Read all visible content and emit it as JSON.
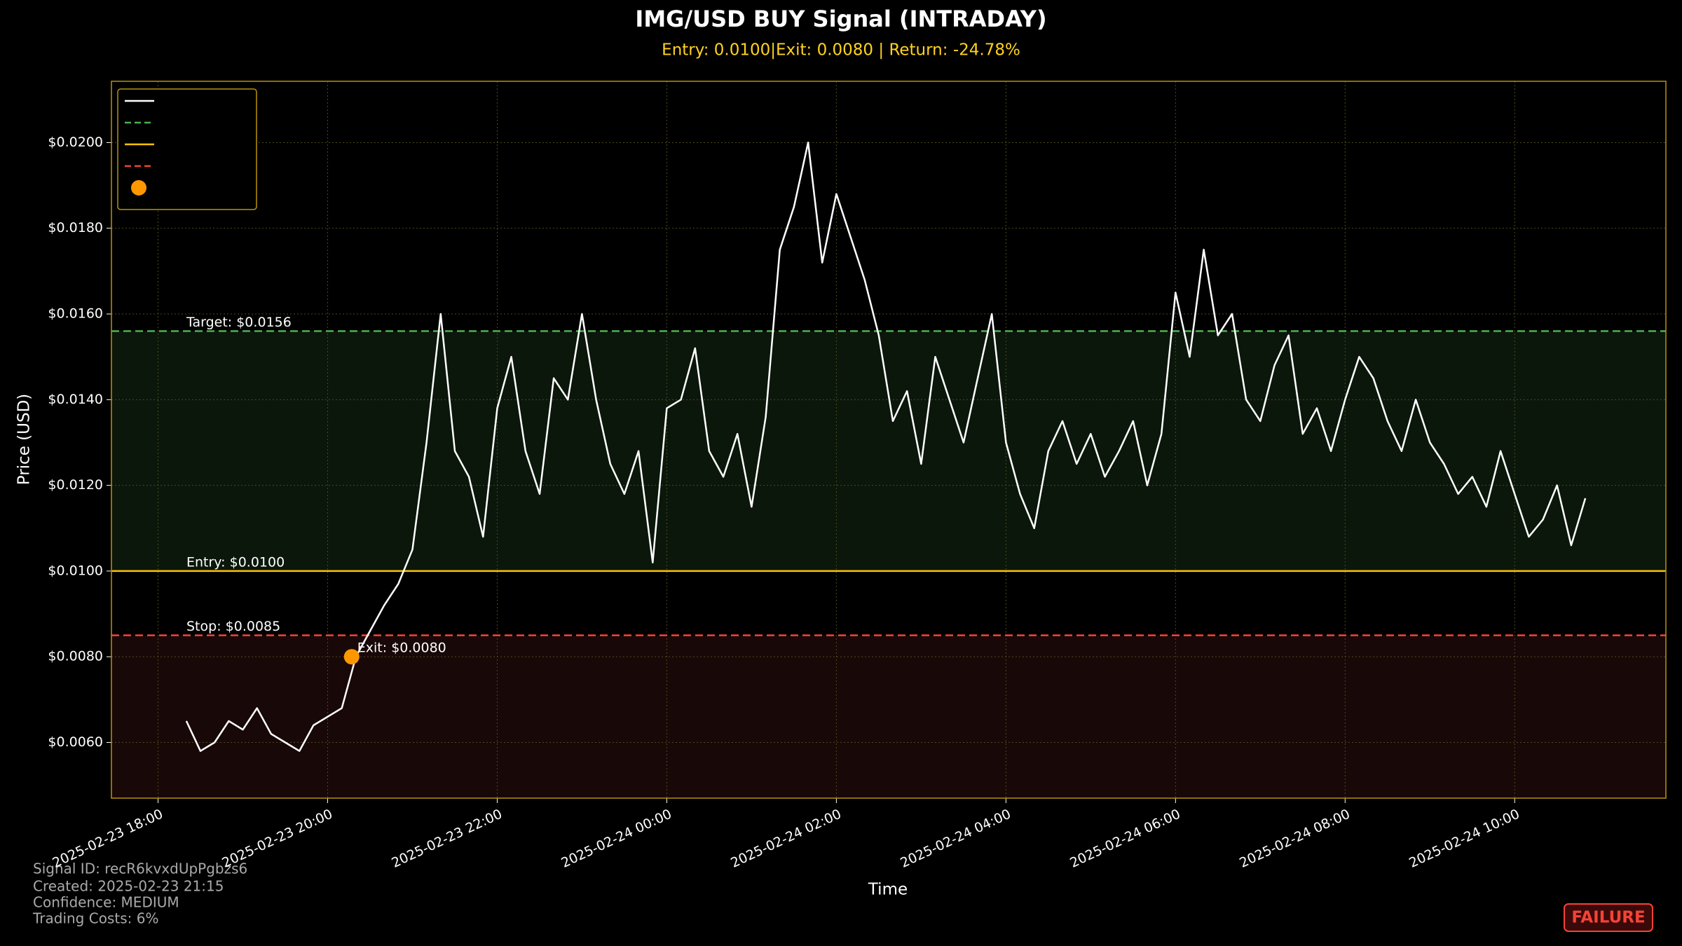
{
  "chart_data": {
    "type": "line",
    "title": "IMG/USD BUY Signal (INTRADAY)",
    "subtitle": "Entry: 0.0100|Exit: 0.0080 | Return: -24.78%",
    "x_label": "Time",
    "y_label": "Price (USD)",
    "x": [
      "2025-02-23 18:20",
      "2025-02-23 18:30",
      "2025-02-23 18:40",
      "2025-02-23 18:50",
      "2025-02-23 19:00",
      "2025-02-23 19:10",
      "2025-02-23 19:20",
      "2025-02-23 19:30",
      "2025-02-23 19:40",
      "2025-02-23 19:50",
      "2025-02-23 20:00",
      "2025-02-23 20:10",
      "2025-02-23 20:20",
      "2025-02-23 20:30",
      "2025-02-23 20:40",
      "2025-02-23 20:50",
      "2025-02-23 21:00",
      "2025-02-23 21:10",
      "2025-02-23 21:20",
      "2025-02-23 21:30",
      "2025-02-23 21:40",
      "2025-02-23 21:50",
      "2025-02-23 22:00",
      "2025-02-23 22:10",
      "2025-02-23 22:20",
      "2025-02-23 22:30",
      "2025-02-23 22:40",
      "2025-02-23 22:50",
      "2025-02-23 23:00",
      "2025-02-23 23:10",
      "2025-02-23 23:20",
      "2025-02-23 23:30",
      "2025-02-23 23:40",
      "2025-02-23 23:50",
      "2025-02-24 00:00",
      "2025-02-24 00:10",
      "2025-02-24 00:20",
      "2025-02-24 00:30",
      "2025-02-24 00:40",
      "2025-02-24 00:50",
      "2025-02-24 01:00",
      "2025-02-24 01:10",
      "2025-02-24 01:20",
      "2025-02-24 01:30",
      "2025-02-24 01:40",
      "2025-02-24 01:50",
      "2025-02-24 02:00",
      "2025-02-24 02:10",
      "2025-02-24 02:20",
      "2025-02-24 02:30",
      "2025-02-24 02:40",
      "2025-02-24 02:50",
      "2025-02-24 03:00",
      "2025-02-24 03:10",
      "2025-02-24 03:20",
      "2025-02-24 03:30",
      "2025-02-24 03:40",
      "2025-02-24 03:50",
      "2025-02-24 04:00",
      "2025-02-24 04:10",
      "2025-02-24 04:20",
      "2025-02-24 04:30",
      "2025-02-24 04:40",
      "2025-02-24 04:50",
      "2025-02-24 05:00",
      "2025-02-24 05:10",
      "2025-02-24 05:20",
      "2025-02-24 05:30",
      "2025-02-24 05:40",
      "2025-02-24 05:50",
      "2025-02-24 06:00",
      "2025-02-24 06:10",
      "2025-02-24 06:20",
      "2025-02-24 06:30",
      "2025-02-24 06:40",
      "2025-02-24 06:50",
      "2025-02-24 07:00",
      "2025-02-24 07:10",
      "2025-02-24 07:20",
      "2025-02-24 07:30",
      "2025-02-24 07:40",
      "2025-02-24 07:50",
      "2025-02-24 08:00",
      "2025-02-24 08:10",
      "2025-02-24 08:20",
      "2025-02-24 08:30",
      "2025-02-24 08:40",
      "2025-02-24 08:50",
      "2025-02-24 09:00",
      "2025-02-24 09:10",
      "2025-02-24 09:20",
      "2025-02-24 09:30",
      "2025-02-24 09:40",
      "2025-02-24 09:50",
      "2025-02-24 10:00",
      "2025-02-24 10:10",
      "2025-02-24 10:20",
      "2025-02-24 10:30",
      "2025-02-24 10:40",
      "2025-02-24 10:50"
    ],
    "series": [
      {
        "color": "#ffffff",
        "values": [
          0.0065,
          0.0058,
          0.006,
          0.0065,
          0.0063,
          0.0068,
          0.0062,
          0.006,
          0.0058,
          0.0064,
          0.0066,
          0.0068,
          0.008,
          0.0086,
          0.0092,
          0.0097,
          0.0105,
          0.013,
          0.016,
          0.0128,
          0.0122,
          0.0108,
          0.0138,
          0.015,
          0.0128,
          0.0118,
          0.0145,
          0.014,
          0.016,
          0.014,
          0.0125,
          0.0118,
          0.0128,
          0.0102,
          0.0138,
          0.014,
          0.0152,
          0.0128,
          0.0122,
          0.0132,
          0.0115,
          0.0136,
          0.0175,
          0.0185,
          0.02,
          0.0172,
          0.0188,
          0.0178,
          0.0168,
          0.0155,
          0.0135,
          0.0142,
          0.0125,
          0.015,
          0.014,
          0.013,
          0.0145,
          0.016,
          0.013,
          0.0118,
          0.011,
          0.0128,
          0.0135,
          0.0125,
          0.0132,
          0.0122,
          0.0128,
          0.0135,
          0.012,
          0.0132,
          0.0165,
          0.015,
          0.0175,
          0.0155,
          0.016,
          0.014,
          0.0135,
          0.0148,
          0.0155,
          0.0132,
          0.0138,
          0.0128,
          0.014,
          0.015,
          0.0145,
          0.0135,
          0.0128,
          0.014,
          0.013,
          0.0125,
          0.0118,
          0.0122,
          0.0115,
          0.0128,
          0.0118,
          0.0108,
          0.0112,
          0.012,
          0.0106,
          0.0117
        ]
      }
    ],
    "hlines": [
      {
        "value": 0.0156,
        "label": "Target: $0.0156",
        "color": "#4caf50",
        "style": "dashed"
      },
      {
        "value": 0.01,
        "label": "Entry: $0.0100",
        "color": "#ffc107",
        "style": "solid"
      },
      {
        "value": 0.0085,
        "label": "Stop: $0.0085",
        "color": "#f44336",
        "style": "dashed"
      }
    ],
    "bands": [
      {
        "from": 0.01,
        "to": 0.0156,
        "color": "#0b170b"
      },
      {
        "to": 0.0085,
        "color": "#190808"
      }
    ],
    "markers": [
      {
        "x": "2025-02-23 20:17",
        "y": 0.008,
        "label": "Exit: $0.0080",
        "color": "#ff9800"
      }
    ],
    "xlim": [
      "2025-02-23 17:27",
      "2025-02-24 11:47"
    ],
    "xticks": [
      "2025-02-23 18:00",
      "2025-02-23 20:00",
      "2025-02-23 22:00",
      "2025-02-24 00:00",
      "2025-02-24 02:00",
      "2025-02-24 04:00",
      "2025-02-24 06:00",
      "2025-02-24 08:00",
      "2025-02-24 10:00"
    ],
    "ylim": [
      0.0047,
      0.02143
    ],
    "yticks": [
      {
        "value": 0.006,
        "label": "$0.0060"
      },
      {
        "value": 0.008,
        "label": "$0.0080"
      },
      {
        "value": 0.01,
        "label": "$0.0100"
      },
      {
        "value": 0.012,
        "label": "$0.0120"
      },
      {
        "value": 0.014,
        "label": "$0.0140"
      },
      {
        "value": 0.016,
        "label": "$0.0160"
      },
      {
        "value": 0.018,
        "label": "$0.0180"
      },
      {
        "value": 0.02,
        "label": "$0.0200"
      }
    ],
    "grid": true,
    "legend": "upper left",
    "footer": [
      "Signal ID: recR6kvxdUpPgbzs6",
      "Created: 2025-02-23 21:15",
      "Confidence: MEDIUM",
      "Trading Costs: 6%"
    ],
    "badge": "FAILURE"
  }
}
